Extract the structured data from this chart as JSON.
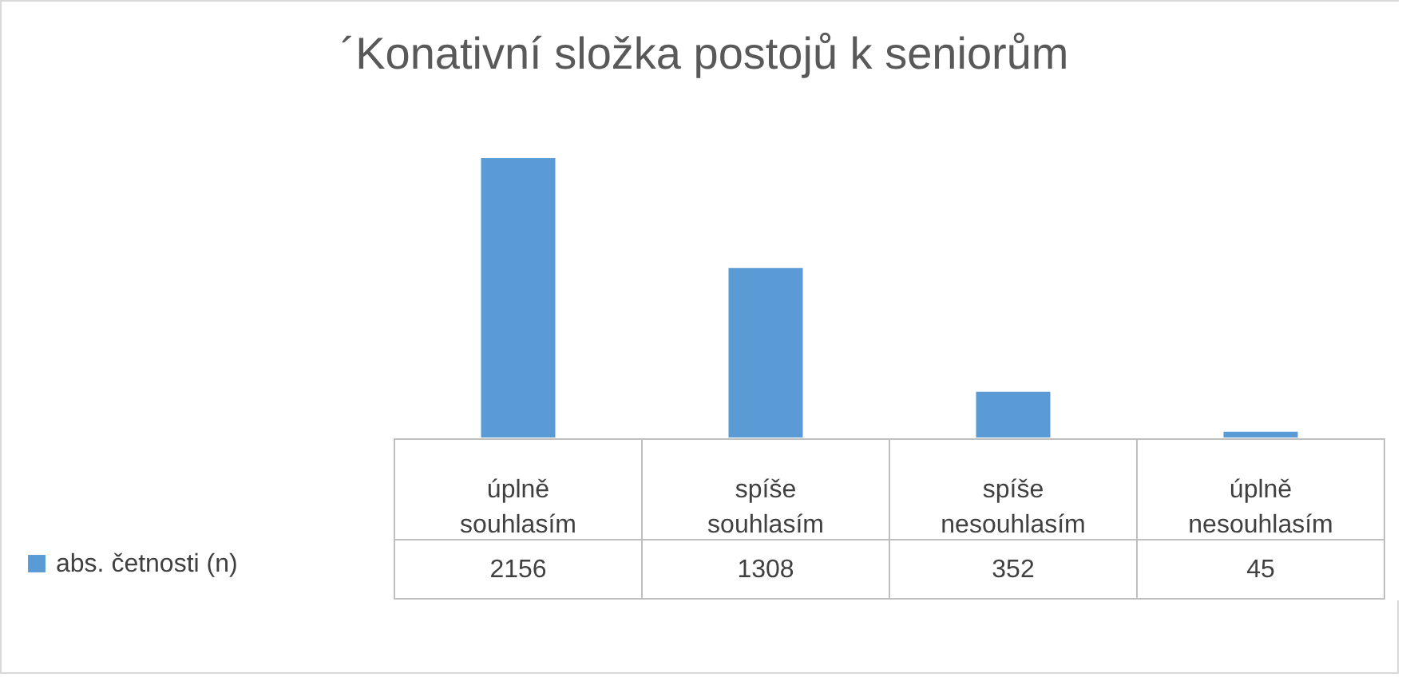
{
  "chart_data": {
    "type": "bar",
    "title": "´Konativní složka postojů k seniorům",
    "categories": [
      "úplně souhlasím",
      "spíše souhlasím",
      "spíše nesouhlasím",
      "úplně nesouhlasím"
    ],
    "series": [
      {
        "name": "abs. četnosti (n)",
        "color": "#5b9bd5",
        "values": [
          2156,
          1308,
          352,
          45
        ]
      }
    ],
    "data_labels": true,
    "legend": "bottom left"
  }
}
